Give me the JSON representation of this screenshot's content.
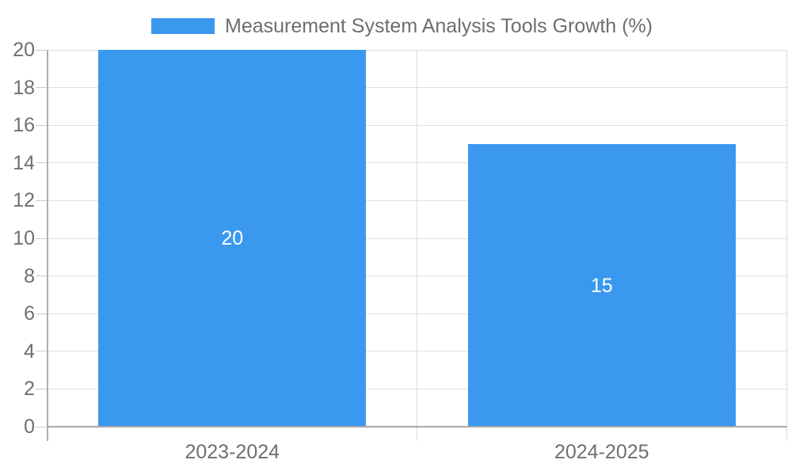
{
  "chart_data": {
    "type": "bar",
    "title": "Measurement System Analysis Tools Growth (%)",
    "categories": [
      "2023-2024",
      "2024-2025"
    ],
    "series": [
      {
        "name": "Measurement System Analysis Tools Growth (%)",
        "values": [
          20,
          15
        ],
        "color": "#3a99ee"
      }
    ],
    "value_labels": [
      "20",
      "15"
    ],
    "xlabel": "",
    "ylabel": "",
    "ylim": [
      0,
      20
    ],
    "ytick_step": 2,
    "yticks": [
      0,
      2,
      4,
      6,
      8,
      10,
      12,
      14,
      16,
      18,
      20
    ],
    "grid": true,
    "legend_position": "top",
    "value_label_color": "#ffffff"
  },
  "legend": {
    "label": "Measurement System Analysis Tools Growth (%)",
    "swatch_color": "#3a99ee"
  },
  "colors": {
    "bar": "#3a99ee",
    "axis_text": "#6f6f6f",
    "value_text": "#ffffff",
    "gridline": "#e0e0e0",
    "axis_line": "#aaaaaa",
    "background": "#ffffff"
  }
}
